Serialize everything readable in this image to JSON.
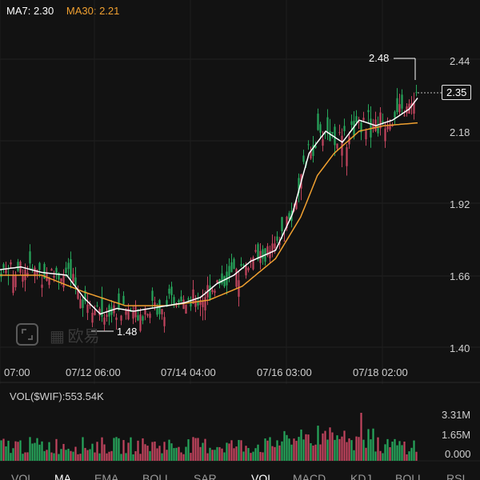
{
  "ma_legend": {
    "ma7": "MA7: 2.30",
    "ma30": "MA30: 2.21",
    "ma7_color": "#ffffff",
    "ma30_color": "#f0a030"
  },
  "y_axis": [
    "2.44",
    "2.18",
    "1.92",
    "1.66",
    "1.40"
  ],
  "x_axis": [
    "07:00",
    "07/12 06:00",
    "07/14 04:00",
    "07/16 03:00",
    "07/18 02:00"
  ],
  "current_price": "2.35",
  "high_label": "2.48",
  "low_label": "1.48",
  "watermark": "欧易",
  "volume": {
    "legend": "VOL($WIF):553.54K",
    "axis": [
      "3.31M",
      "1.65M",
      "0.000"
    ]
  },
  "tabs": [
    {
      "label": "VOL",
      "active": false
    },
    {
      "label": "MA",
      "active": true
    },
    {
      "label": "EMA",
      "active": false
    },
    {
      "label": "BOLL",
      "active": false
    },
    {
      "label": "SAR",
      "active": false
    },
    {
      "label": "VOL",
      "active": true
    },
    {
      "label": "MACD",
      "active": false
    },
    {
      "label": "KDJ",
      "active": false
    },
    {
      "label": "BOLL",
      "active": false
    },
    {
      "label": "RSI",
      "active": false
    }
  ],
  "colors": {
    "up": "#26a65b",
    "down": "#c2455e",
    "background": "#121212"
  },
  "chart_data": {
    "type": "candlestick",
    "y_range": [
      1.4,
      2.5
    ],
    "ma7_key": [
      [
        0,
        1.68
      ],
      [
        0.05,
        1.69
      ],
      [
        0.1,
        1.67
      ],
      [
        0.16,
        1.66
      ],
      [
        0.2,
        1.58
      ],
      [
        0.24,
        1.52
      ],
      [
        0.28,
        1.54
      ],
      [
        0.32,
        1.53
      ],
      [
        0.36,
        1.54
      ],
      [
        0.4,
        1.55
      ],
      [
        0.44,
        1.56
      ],
      [
        0.48,
        1.58
      ],
      [
        0.52,
        1.63
      ],
      [
        0.56,
        1.66
      ],
      [
        0.6,
        1.71
      ],
      [
        0.66,
        1.75
      ],
      [
        0.7,
        1.88
      ],
      [
        0.74,
        2.1
      ],
      [
        0.78,
        2.18
      ],
      [
        0.82,
        2.14
      ],
      [
        0.86,
        2.22
      ],
      [
        0.9,
        2.2
      ],
      [
        0.94,
        2.22
      ],
      [
        0.98,
        2.26
      ],
      [
        1.0,
        2.3
      ]
    ],
    "ma30_key": [
      [
        0,
        1.66
      ],
      [
        0.1,
        1.66
      ],
      [
        0.2,
        1.6
      ],
      [
        0.3,
        1.55
      ],
      [
        0.4,
        1.55
      ],
      [
        0.5,
        1.57
      ],
      [
        0.58,
        1.62
      ],
      [
        0.66,
        1.72
      ],
      [
        0.72,
        1.87
      ],
      [
        0.76,
        2.02
      ],
      [
        0.8,
        2.1
      ],
      [
        0.86,
        2.18
      ],
      [
        0.92,
        2.2
      ],
      [
        1.0,
        2.21
      ]
    ]
  }
}
